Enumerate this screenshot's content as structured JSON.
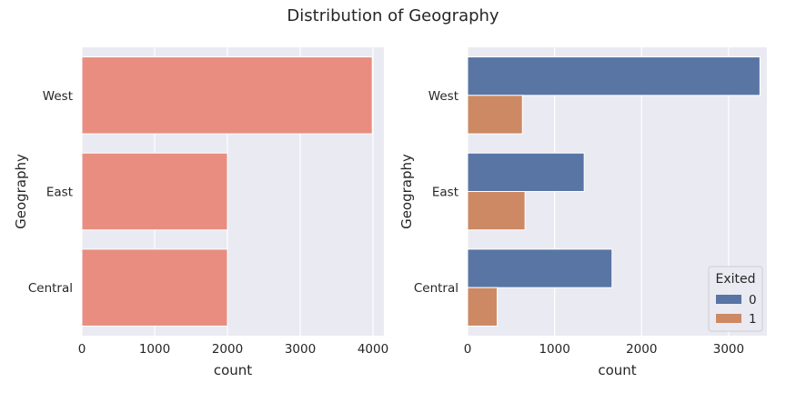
{
  "figure": {
    "title": "Distribution of Geography"
  },
  "chart_data": [
    {
      "type": "bar",
      "orientation": "horizontal",
      "categories": [
        "West",
        "East",
        "Central"
      ],
      "values": [
        3990,
        2000,
        2000
      ],
      "color": "#e98d80",
      "xlabel": "count",
      "ylabel": "Geography",
      "xlim": [
        0,
        4150
      ],
      "xticks": [
        0,
        1000,
        2000,
        3000,
        4000
      ],
      "grid": true
    },
    {
      "type": "bar",
      "orientation": "horizontal",
      "categories": [
        "West",
        "East",
        "Central"
      ],
      "series": [
        {
          "name": "0",
          "values": [
            3360,
            1340,
            1660
          ],
          "color": "#5875a4"
        },
        {
          "name": "1",
          "values": [
            630,
            660,
            340
          ],
          "color": "#cc8963"
        }
      ],
      "legend_title": "Exited",
      "legend_position": "lower-right",
      "xlabel": "count",
      "ylabel": "Geography",
      "xlim": [
        0,
        3440
      ],
      "xticks": [
        0,
        1000,
        2000,
        3000
      ],
      "grid": true
    }
  ]
}
